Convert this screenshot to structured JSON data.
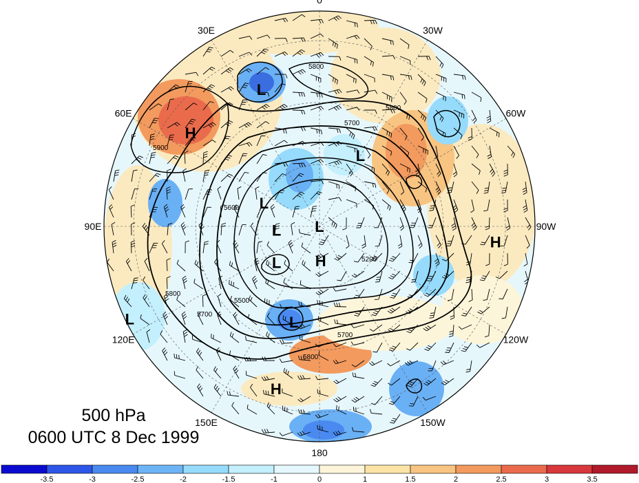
{
  "map": {
    "longitude_labels": [
      {
        "text": "0",
        "angle": 0
      },
      {
        "text": "30W",
        "angle": 30
      },
      {
        "text": "60W",
        "angle": 60
      },
      {
        "text": "90W",
        "angle": 90
      },
      {
        "text": "120W",
        "angle": 120
      },
      {
        "text": "150W",
        "angle": 150
      },
      {
        "text": "180",
        "angle": 180
      },
      {
        "text": "150E",
        "angle": 210
      },
      {
        "text": "120E",
        "angle": 240
      },
      {
        "text": "90E",
        "angle": 270
      },
      {
        "text": "60E",
        "angle": 300
      },
      {
        "text": "30E",
        "angle": 330
      }
    ],
    "centers": [
      {
        "type": "H",
        "lon_angle": 306,
        "r_frac": 0.74
      },
      {
        "type": "L",
        "lon_angle": 337,
        "r_frac": 0.69
      },
      {
        "type": "L",
        "lon_angle": 30,
        "r_frac": 0.38
      },
      {
        "type": "L",
        "lon_angle": 293,
        "r_frac": 0.28
      },
      {
        "type": "L",
        "lon_angle": 265,
        "r_frac": 0.2
      },
      {
        "type": "H",
        "lon_angle": 178,
        "r_frac": 0.16
      },
      {
        "type": "L",
        "lon_angle": 230,
        "r_frac": 0.26
      },
      {
        "type": "L",
        "lon_angle": 195,
        "r_frac": 0.46
      },
      {
        "type": "L",
        "lon_angle": 180,
        "r_frac": 0.0
      },
      {
        "type": "H",
        "lon_angle": 95,
        "r_frac": 0.82
      },
      {
        "type": "L",
        "lon_angle": 244,
        "r_frac": 0.98
      },
      {
        "type": "H",
        "lon_angle": 195,
        "r_frac": 0.78
      }
    ],
    "contour_labels": [
      "5800",
      "5900",
      "5700",
      "5600",
      "5500",
      "5200"
    ],
    "anomaly_colors": {
      "strong_negative": "#3a6de0",
      "negative": "#6ab0f5",
      "weak_negative": "#c5ecfb",
      "weak_positive": "#fbeac0",
      "positive": "#f6a56a",
      "strong_positive": "#e8534a"
    }
  },
  "title": {
    "level": "500 hPa",
    "time": "0600 UTC 8 Dec 1999"
  },
  "colorbar": {
    "colors": [
      "#0b0bd0",
      "#2d56e8",
      "#4a8af0",
      "#6cb4f6",
      "#96dbfb",
      "#c4effd",
      "#e4f8fd",
      "#fdf5d9",
      "#fbe3a6",
      "#f8c481",
      "#f39a5e",
      "#ea6b4c",
      "#d8373c",
      "#b01a2a"
    ],
    "tick_labels": [
      "-3.5",
      "-3",
      "-2.5",
      "-2",
      "-1.5",
      "-1",
      "0",
      "1",
      "1.5",
      "2",
      "2.5",
      "3",
      "3.5"
    ]
  }
}
